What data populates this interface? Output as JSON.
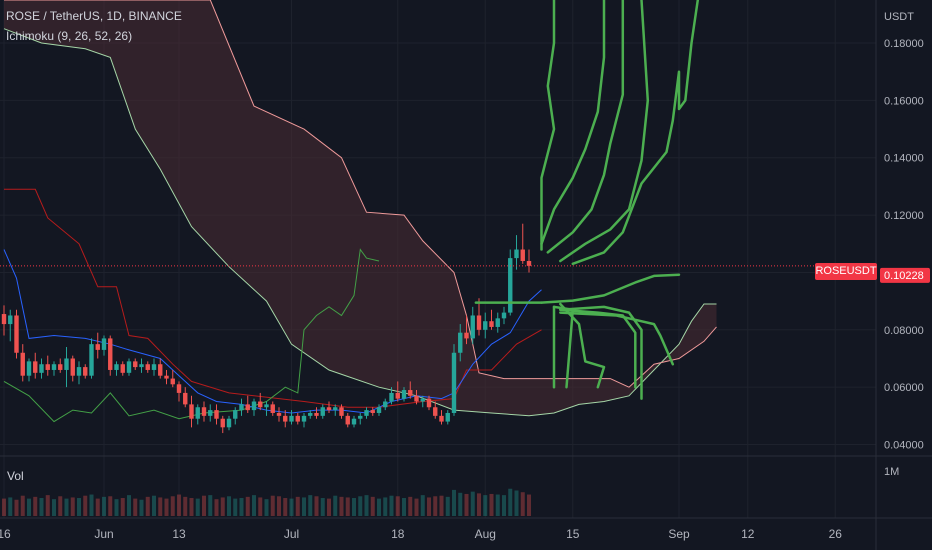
{
  "header": {
    "symbol_line": "ROSE / TetherUS, 1D, BINANCE",
    "indicator_line": "Ichimoku (9, 26, 52, 26)"
  },
  "price_axis": {
    "currency": "USDT"
  },
  "last_price": {
    "symbol": "ROSEUSDT",
    "value": "0.10228"
  },
  "volume_pane": {
    "label": "Vol",
    "axis_label": "1M"
  },
  "colors": {
    "background": "#131722",
    "up": "#26a69a",
    "down": "#ef5350",
    "conversion_line": "#2962ff",
    "base_line": "#b71c1c",
    "lagging_span": "#43a047",
    "cloud_span_a": "#a5d6a7",
    "cloud_span_b": "#ef9a9a",
    "cloud_fill": "#4a2b33",
    "drawing": "#4caf50",
    "price_line": "#f23645"
  },
  "chart_data": {
    "type": "candlestick",
    "yaxis": {
      "ticks": [
        0.04,
        0.06,
        0.08,
        0.1,
        0.12,
        0.14,
        0.16,
        0.18
      ],
      "tick_labels": [
        "0.04000",
        "0.06000",
        "0.08000",
        "0.10000",
        "0.12000",
        "0.14000",
        "0.16000",
        "0.18000"
      ],
      "ylim": [
        0.036,
        0.195
      ]
    },
    "xaxis": {
      "tick_labels": [
        {
          "label": "16",
          "day": 0
        },
        {
          "label": "Jun",
          "day": 16
        },
        {
          "label": "13",
          "day": 28
        },
        {
          "label": "Jul",
          "day": 46
        },
        {
          "label": "18",
          "day": 63
        },
        {
          "label": "Aug",
          "day": 77
        },
        {
          "label": "15",
          "day": 91
        },
        {
          "label": "Sep",
          "day": 108
        },
        {
          "label": "12",
          "day": 119
        },
        {
          "label": "26",
          "day": 133
        }
      ]
    },
    "candles": [
      [
        0.0855,
        0.0885,
        0.078,
        0.082
      ],
      [
        0.082,
        0.087,
        0.076,
        0.085
      ],
      [
        0.085,
        0.087,
        0.07,
        0.072
      ],
      [
        0.072,
        0.075,
        0.062,
        0.064
      ],
      [
        0.064,
        0.07,
        0.062,
        0.069
      ],
      [
        0.069,
        0.072,
        0.063,
        0.065
      ],
      [
        0.065,
        0.07,
        0.063,
        0.068
      ],
      [
        0.068,
        0.071,
        0.064,
        0.066
      ],
      [
        0.066,
        0.069,
        0.064,
        0.068
      ],
      [
        0.068,
        0.07,
        0.065,
        0.066
      ],
      [
        0.066,
        0.074,
        0.06,
        0.07
      ],
      [
        0.07,
        0.071,
        0.062,
        0.064
      ],
      [
        0.064,
        0.069,
        0.061,
        0.067
      ],
      [
        0.067,
        0.068,
        0.063,
        0.064
      ],
      [
        0.064,
        0.077,
        0.063,
        0.075
      ],
      [
        0.075,
        0.079,
        0.07,
        0.073
      ],
      [
        0.073,
        0.078,
        0.071,
        0.077
      ],
      [
        0.077,
        0.078,
        0.064,
        0.066
      ],
      [
        0.066,
        0.069,
        0.064,
        0.068
      ],
      [
        0.068,
        0.069,
        0.064,
        0.065
      ],
      [
        0.065,
        0.07,
        0.064,
        0.069
      ],
      [
        0.069,
        0.07,
        0.066,
        0.067
      ],
      [
        0.067,
        0.07,
        0.065,
        0.068
      ],
      [
        0.068,
        0.069,
        0.065,
        0.066
      ],
      [
        0.066,
        0.07,
        0.064,
        0.068
      ],
      [
        0.068,
        0.07,
        0.063,
        0.064
      ],
      [
        0.064,
        0.066,
        0.061,
        0.063
      ],
      [
        0.063,
        0.066,
        0.06,
        0.061
      ],
      [
        0.061,
        0.062,
        0.055,
        0.058
      ],
      [
        0.058,
        0.06,
        0.053,
        0.054
      ],
      [
        0.054,
        0.057,
        0.046,
        0.049
      ],
      [
        0.049,
        0.054,
        0.047,
        0.053
      ],
      [
        0.053,
        0.055,
        0.048,
        0.05
      ],
      [
        0.05,
        0.054,
        0.048,
        0.052
      ],
      [
        0.052,
        0.054,
        0.047,
        0.049
      ],
      [
        0.049,
        0.05,
        0.044,
        0.046
      ],
      [
        0.046,
        0.05,
        0.045,
        0.049
      ],
      [
        0.049,
        0.053,
        0.047,
        0.052
      ],
      [
        0.052,
        0.056,
        0.05,
        0.054
      ],
      [
        0.054,
        0.057,
        0.051,
        0.052
      ],
      [
        0.052,
        0.056,
        0.05,
        0.055
      ],
      [
        0.055,
        0.058,
        0.052,
        0.053
      ],
      [
        0.053,
        0.055,
        0.05,
        0.054
      ],
      [
        0.054,
        0.055,
        0.05,
        0.051
      ],
      [
        0.051,
        0.053,
        0.048,
        0.05
      ],
      [
        0.05,
        0.052,
        0.046,
        0.048
      ],
      [
        0.048,
        0.052,
        0.047,
        0.05
      ],
      [
        0.05,
        0.051,
        0.047,
        0.048
      ],
      [
        0.048,
        0.051,
        0.046,
        0.05
      ],
      [
        0.05,
        0.052,
        0.049,
        0.051
      ],
      [
        0.051,
        0.053,
        0.049,
        0.05
      ],
      [
        0.05,
        0.054,
        0.049,
        0.053
      ],
      [
        0.053,
        0.055,
        0.051,
        0.052
      ],
      [
        0.052,
        0.054,
        0.05,
        0.053
      ],
      [
        0.053,
        0.054,
        0.049,
        0.05
      ],
      [
        0.05,
        0.051,
        0.046,
        0.047
      ],
      [
        0.047,
        0.05,
        0.046,
        0.049
      ],
      [
        0.049,
        0.051,
        0.047,
        0.05
      ],
      [
        0.05,
        0.053,
        0.049,
        0.052
      ],
      [
        0.052,
        0.053,
        0.05,
        0.051
      ],
      [
        0.051,
        0.054,
        0.05,
        0.053
      ],
      [
        0.053,
        0.056,
        0.052,
        0.055
      ],
      [
        0.055,
        0.06,
        0.054,
        0.058
      ],
      [
        0.058,
        0.062,
        0.055,
        0.056
      ],
      [
        0.056,
        0.06,
        0.055,
        0.059
      ],
      [
        0.059,
        0.062,
        0.056,
        0.057
      ],
      [
        0.057,
        0.059,
        0.054,
        0.055
      ],
      [
        0.055,
        0.057,
        0.053,
        0.056
      ],
      [
        0.056,
        0.057,
        0.052,
        0.053
      ],
      [
        0.053,
        0.055,
        0.049,
        0.05
      ],
      [
        0.05,
        0.052,
        0.047,
        0.048
      ],
      [
        0.048,
        0.052,
        0.047,
        0.051
      ],
      [
        0.051,
        0.075,
        0.05,
        0.072
      ],
      [
        0.072,
        0.082,
        0.069,
        0.079
      ],
      [
        0.079,
        0.085,
        0.075,
        0.077
      ],
      [
        0.077,
        0.088,
        0.075,
        0.085
      ],
      [
        0.085,
        0.091,
        0.078,
        0.08
      ],
      [
        0.08,
        0.086,
        0.077,
        0.083
      ],
      [
        0.083,
        0.087,
        0.08,
        0.081
      ],
      [
        0.081,
        0.086,
        0.079,
        0.084
      ],
      [
        0.084,
        0.088,
        0.082,
        0.086
      ],
      [
        0.086,
        0.108,
        0.085,
        0.105
      ],
      [
        0.105,
        0.113,
        0.101,
        0.108
      ],
      [
        0.108,
        0.117,
        0.103,
        0.104
      ],
      [
        0.104,
        0.108,
        0.1,
        0.1023
      ]
    ],
    "conversion_line": [
      [
        0,
        0.108
      ],
      [
        2,
        0.098
      ],
      [
        4,
        0.077
      ],
      [
        8,
        0.078
      ],
      [
        13,
        0.077
      ],
      [
        17,
        0.075
      ],
      [
        20,
        0.073
      ],
      [
        25,
        0.07
      ],
      [
        28,
        0.064
      ],
      [
        31,
        0.058
      ],
      [
        34,
        0.055
      ],
      [
        38,
        0.054
      ],
      [
        42,
        0.052
      ],
      [
        46,
        0.051
      ],
      [
        50,
        0.052
      ],
      [
        54,
        0.052
      ],
      [
        58,
        0.051
      ],
      [
        62,
        0.055
      ],
      [
        66,
        0.057
      ],
      [
        70,
        0.056
      ],
      [
        72,
        0.058
      ],
      [
        75,
        0.068
      ],
      [
        78,
        0.075
      ],
      [
        81,
        0.079
      ],
      [
        84,
        0.09
      ],
      [
        86,
        0.094
      ]
    ],
    "base_line": [
      [
        0,
        0.129
      ],
      [
        5,
        0.129
      ],
      [
        7,
        0.119
      ],
      [
        12,
        0.11
      ],
      [
        15,
        0.095
      ],
      [
        18,
        0.095
      ],
      [
        20,
        0.078
      ],
      [
        23,
        0.077
      ],
      [
        27,
        0.068
      ],
      [
        30,
        0.062
      ],
      [
        36,
        0.058
      ],
      [
        48,
        0.055
      ],
      [
        55,
        0.053
      ],
      [
        60,
        0.053
      ],
      [
        67,
        0.055
      ],
      [
        72,
        0.056
      ],
      [
        74,
        0.066
      ],
      [
        78,
        0.066
      ],
      [
        82,
        0.075
      ],
      [
        86,
        0.08
      ]
    ],
    "lagging_span": [
      [
        0,
        0.062
      ],
      [
        4,
        0.057
      ],
      [
        8,
        0.048
      ],
      [
        11,
        0.052
      ],
      [
        14,
        0.051
      ],
      [
        17,
        0.058
      ],
      [
        20,
        0.05
      ],
      [
        24,
        0.052
      ],
      [
        28,
        0.049
      ],
      [
        32,
        0.051
      ],
      [
        38,
        0.052
      ],
      [
        42,
        0.055
      ],
      [
        45,
        0.06
      ],
      [
        47,
        0.058
      ],
      [
        48,
        0.08
      ],
      [
        50,
        0.085
      ],
      [
        52,
        0.088
      ],
      [
        54,
        0.085
      ],
      [
        56,
        0.092
      ],
      [
        57,
        0.108
      ],
      [
        58,
        0.105
      ],
      [
        60,
        0.104
      ]
    ],
    "cloud_span_a": [
      [
        0,
        0.185
      ],
      [
        6,
        0.18
      ],
      [
        13,
        0.178
      ],
      [
        17,
        0.175
      ],
      [
        21,
        0.15
      ],
      [
        25,
        0.136
      ],
      [
        30,
        0.116
      ],
      [
        36,
        0.102
      ],
      [
        42,
        0.09
      ],
      [
        46,
        0.075
      ],
      [
        52,
        0.066
      ],
      [
        60,
        0.06
      ],
      [
        66,
        0.057
      ],
      [
        72,
        0.052
      ],
      [
        78,
        0.051
      ],
      [
        84,
        0.05
      ],
      [
        88,
        0.051
      ],
      [
        92,
        0.054
      ],
      [
        96,
        0.055
      ],
      [
        100,
        0.057
      ],
      [
        104,
        0.066
      ],
      [
        108,
        0.075
      ],
      [
        110,
        0.083
      ],
      [
        112,
        0.089
      ],
      [
        114,
        0.089
      ]
    ],
    "cloud_span_b": [
      [
        0,
        0.195
      ],
      [
        24,
        0.195
      ],
      [
        33,
        0.195
      ],
      [
        40,
        0.158
      ],
      [
        48,
        0.15
      ],
      [
        54,
        0.14
      ],
      [
        58,
        0.121
      ],
      [
        64,
        0.12
      ],
      [
        67,
        0.111
      ],
      [
        72,
        0.1
      ],
      [
        74,
        0.085
      ],
      [
        76,
        0.065
      ],
      [
        80,
        0.063
      ],
      [
        86,
        0.063
      ],
      [
        92,
        0.063
      ],
      [
        97,
        0.063
      ],
      [
        100,
        0.06
      ],
      [
        104,
        0.068
      ],
      [
        108,
        0.07
      ],
      [
        112,
        0.076
      ],
      [
        114,
        0.081
      ]
    ],
    "volume": [
      0.3,
      0.32,
      0.28,
      0.35,
      0.3,
      0.33,
      0.31,
      0.36,
      0.29,
      0.34,
      0.3,
      0.32,
      0.31,
      0.35,
      0.37,
      0.3,
      0.33,
      0.34,
      0.29,
      0.31,
      0.36,
      0.3,
      0.28,
      0.33,
      0.35,
      0.32,
      0.3,
      0.34,
      0.37,
      0.33,
      0.31,
      0.3,
      0.35,
      0.36,
      0.29,
      0.32,
      0.34,
      0.3,
      0.31,
      0.33,
      0.36,
      0.32,
      0.29,
      0.35,
      0.34,
      0.31,
      0.3,
      0.33,
      0.32,
      0.36,
      0.34,
      0.31,
      0.3,
      0.35,
      0.33,
      0.32,
      0.31,
      0.34,
      0.36,
      0.33,
      0.3,
      0.32,
      0.35,
      0.34,
      0.31,
      0.33,
      0.3,
      0.36,
      0.32,
      0.34,
      0.35,
      0.33,
      0.45,
      0.4,
      0.38,
      0.42,
      0.39,
      0.36,
      0.38,
      0.37,
      0.36,
      0.47,
      0.44,
      0.41,
      0.37
    ],
    "annotations": {
      "horizontal_line": {
        "from_day": 75.5,
        "to_day": 86,
        "value": 0.0895
      },
      "curve_right": [
        [
          86,
          0.0895
        ],
        [
          91,
          0.0902
        ],
        [
          96,
          0.092
        ],
        [
          101,
          0.0965
        ],
        [
          104,
          0.0988
        ],
        [
          108,
          0.0992
        ]
      ],
      "arrows_up": [
        [
          [
            86,
            0.108
          ],
          [
            86,
            0.133
          ],
          [
            88,
            0.15
          ],
          [
            87,
            0.165
          ],
          [
            88,
            0.18
          ],
          [
            88,
            0.195
          ]
        ],
        [
          [
            86,
            0.11
          ],
          [
            88,
            0.122
          ],
          [
            91,
            0.133
          ],
          [
            93,
            0.143
          ],
          [
            95,
            0.156
          ],
          [
            96,
            0.175
          ],
          [
            96,
            0.195
          ]
        ],
        [
          [
            87,
            0.107
          ],
          [
            91,
            0.114
          ],
          [
            94,
            0.122
          ],
          [
            96,
            0.134
          ],
          [
            97,
            0.145
          ],
          [
            99,
            0.162
          ],
          [
            99,
            0.195
          ]
        ],
        [
          [
            89,
            0.104
          ],
          [
            93,
            0.11
          ],
          [
            97,
            0.115
          ],
          [
            100,
            0.122
          ],
          [
            102,
            0.139
          ],
          [
            103,
            0.16
          ],
          [
            102,
            0.195
          ]
        ],
        [
          [
            91,
            0.103
          ],
          [
            96,
            0.107
          ],
          [
            99,
            0.114
          ],
          [
            102,
            0.131
          ],
          [
            106,
            0.142
          ],
          [
            107,
            0.153
          ],
          [
            108,
            0.17
          ],
          [
            108,
            0.157
          ],
          [
            109,
            0.16
          ],
          [
            110,
            0.18
          ],
          [
            111,
            0.195
          ]
        ]
      ],
      "arrows_down": [
        [
          [
            88,
            0.088
          ],
          [
            88,
            0.06
          ]
        ],
        [
          [
            88,
            0.088
          ],
          [
            91,
            0.087
          ],
          [
            90,
            0.06
          ]
        ],
        [
          [
            89,
            0.089
          ],
          [
            92,
            0.082
          ],
          [
            93,
            0.069
          ],
          [
            96,
            0.067
          ],
          [
            95,
            0.06
          ]
        ],
        [
          [
            89,
            0.087
          ],
          [
            95,
            0.086
          ],
          [
            99,
            0.085
          ],
          [
            101,
            0.079
          ],
          [
            101,
            0.06
          ]
        ],
        [
          [
            89,
            0.087
          ],
          [
            96,
            0.088
          ],
          [
            100,
            0.086
          ],
          [
            102,
            0.08
          ],
          [
            102,
            0.056
          ]
        ],
        [
          [
            89,
            0.086
          ],
          [
            98,
            0.085
          ],
          [
            104,
            0.082
          ],
          [
            105,
            0.078
          ],
          [
            107,
            0.068
          ]
        ]
      ]
    }
  }
}
